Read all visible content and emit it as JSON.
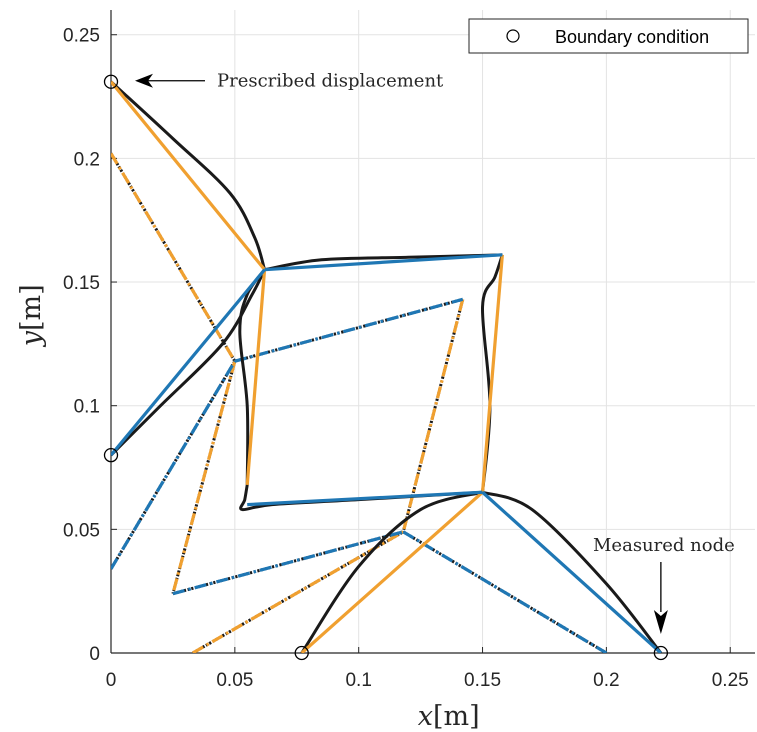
{
  "chart_data": {
    "type": "line",
    "xlabel": "x",
    "xunit": "[m]",
    "ylabel": "y",
    "yunit": "[m]",
    "xlim": [
      0,
      0.26
    ],
    "ylim": [
      0,
      0.26
    ],
    "xticks": [
      0,
      0.05,
      0.1,
      0.15,
      0.2,
      0.25
    ],
    "yticks": [
      0,
      0.05,
      0.1,
      0.15,
      0.2,
      0.25
    ],
    "xtick_labels": [
      "0",
      "0.05",
      "0.1",
      "0.15",
      "0.2",
      "0.25"
    ],
    "ytick_labels": [
      "0",
      "0.05",
      "0.1",
      "0.15",
      "0.2",
      "0.25"
    ],
    "grid": true,
    "legend": {
      "position": "top-right",
      "entries": [
        {
          "label": "Boundary condition",
          "marker": "open-circle"
        }
      ]
    },
    "colors": {
      "black": "#1a1a1a",
      "orange": "#f0a030",
      "blue": "#1f77b4"
    },
    "annotations": [
      {
        "text": "Prescribed displacement",
        "x": 0.0,
        "y": 0.231
      },
      {
        "text": "Measured node",
        "x": 0.222,
        "y": 0.0
      }
    ],
    "boundary_points": [
      {
        "x": 0.0,
        "y": 0.231
      },
      {
        "x": 0.0,
        "y": 0.08
      },
      {
        "x": 0.077,
        "y": 0.0
      },
      {
        "x": 0.222,
        "y": 0.0
      }
    ],
    "series": [
      {
        "color": "black",
        "style": "solid",
        "smooth": true,
        "points": [
          [
            0.0,
            0.231
          ],
          [
            0.025,
            0.208
          ],
          [
            0.048,
            0.186
          ],
          [
            0.058,
            0.168
          ],
          [
            0.062,
            0.155
          ]
        ]
      },
      {
        "color": "black",
        "style": "solid",
        "smooth": true,
        "points": [
          [
            0.0,
            0.08
          ],
          [
            0.02,
            0.1
          ],
          [
            0.045,
            0.125
          ],
          [
            0.057,
            0.145
          ],
          [
            0.062,
            0.155
          ]
        ]
      },
      {
        "color": "black",
        "style": "solid",
        "smooth": true,
        "points": [
          [
            0.062,
            0.155
          ],
          [
            0.085,
            0.159
          ],
          [
            0.12,
            0.16
          ],
          [
            0.158,
            0.161
          ]
        ]
      },
      {
        "color": "black",
        "style": "solid",
        "smooth": true,
        "points": [
          [
            0.158,
            0.161
          ],
          [
            0.155,
            0.152
          ],
          [
            0.15,
            0.14
          ],
          [
            0.153,
            0.1
          ],
          [
            0.15,
            0.065
          ]
        ]
      },
      {
        "color": "black",
        "style": "solid",
        "smooth": true,
        "points": [
          [
            0.062,
            0.155
          ],
          [
            0.055,
            0.145
          ],
          [
            0.052,
            0.13
          ],
          [
            0.055,
            0.1
          ],
          [
            0.055,
            0.068
          ]
        ]
      },
      {
        "color": "black",
        "style": "solid",
        "smooth": true,
        "points": [
          [
            0.055,
            0.068
          ],
          [
            0.054,
            0.062
          ],
          [
            0.053,
            0.058
          ],
          [
            0.065,
            0.06
          ],
          [
            0.1,
            0.062
          ],
          [
            0.15,
            0.065
          ]
        ]
      },
      {
        "color": "black",
        "style": "solid",
        "smooth": true,
        "points": [
          [
            0.15,
            0.065
          ],
          [
            0.17,
            0.058
          ],
          [
            0.2,
            0.028
          ],
          [
            0.222,
            0.0
          ]
        ]
      },
      {
        "color": "black",
        "style": "solid",
        "smooth": true,
        "points": [
          [
            0.077,
            0.0
          ],
          [
            0.1,
            0.035
          ],
          [
            0.125,
            0.058
          ],
          [
            0.15,
            0.065
          ]
        ]
      },
      {
        "color": "orange",
        "style": "solid",
        "smooth": false,
        "points": [
          [
            0.0,
            0.231
          ],
          [
            0.062,
            0.155
          ]
        ]
      },
      {
        "color": "orange",
        "style": "solid",
        "smooth": false,
        "points": [
          [
            0.062,
            0.155
          ],
          [
            0.055,
            0.068
          ]
        ]
      },
      {
        "color": "orange",
        "style": "solid",
        "smooth": false,
        "points": [
          [
            0.158,
            0.161
          ],
          [
            0.15,
            0.065
          ]
        ]
      },
      {
        "color": "orange",
        "style": "solid",
        "smooth": false,
        "points": [
          [
            0.077,
            0.0
          ],
          [
            0.15,
            0.065
          ]
        ]
      },
      {
        "color": "blue",
        "style": "solid",
        "smooth": false,
        "points": [
          [
            0.0,
            0.08
          ],
          [
            0.062,
            0.155
          ]
        ]
      },
      {
        "color": "blue",
        "style": "solid",
        "smooth": false,
        "points": [
          [
            0.062,
            0.155
          ],
          [
            0.158,
            0.161
          ]
        ]
      },
      {
        "color": "blue",
        "style": "solid",
        "smooth": false,
        "points": [
          [
            0.055,
            0.06
          ],
          [
            0.15,
            0.065
          ]
        ]
      },
      {
        "color": "blue",
        "style": "solid",
        "smooth": false,
        "points": [
          [
            0.15,
            0.065
          ],
          [
            0.222,
            0.0
          ]
        ]
      },
      {
        "color": "black",
        "style": "dotted",
        "smooth": false,
        "points": [
          [
            0.0,
            0.202
          ],
          [
            0.05,
            0.118
          ]
        ]
      },
      {
        "color": "black",
        "style": "dotted",
        "smooth": false,
        "points": [
          [
            0.0,
            0.034
          ],
          [
            0.05,
            0.118
          ]
        ]
      },
      {
        "color": "black",
        "style": "dotted",
        "smooth": false,
        "points": [
          [
            0.05,
            0.118
          ],
          [
            0.142,
            0.143
          ]
        ]
      },
      {
        "color": "black",
        "style": "dotted",
        "smooth": false,
        "points": [
          [
            0.142,
            0.143
          ],
          [
            0.118,
            0.049
          ]
        ]
      },
      {
        "color": "black",
        "style": "dotted",
        "smooth": false,
        "points": [
          [
            0.05,
            0.118
          ],
          [
            0.025,
            0.024
          ]
        ]
      },
      {
        "color": "black",
        "style": "dotted",
        "smooth": false,
        "points": [
          [
            0.025,
            0.024
          ],
          [
            0.118,
            0.049
          ]
        ]
      },
      {
        "color": "black",
        "style": "dotted",
        "smooth": false,
        "points": [
          [
            0.118,
            0.049
          ],
          [
            0.2,
            0.0
          ]
        ]
      },
      {
        "color": "black",
        "style": "dotted",
        "smooth": false,
        "points": [
          [
            0.033,
            0.0
          ],
          [
            0.118,
            0.049
          ]
        ]
      },
      {
        "color": "orange",
        "style": "dashdot",
        "smooth": false,
        "points": [
          [
            0.0,
            0.202
          ],
          [
            0.05,
            0.118
          ]
        ]
      },
      {
        "color": "orange",
        "style": "dashdot",
        "smooth": false,
        "points": [
          [
            0.05,
            0.118
          ],
          [
            0.025,
            0.024
          ]
        ]
      },
      {
        "color": "orange",
        "style": "dashdot",
        "smooth": false,
        "points": [
          [
            0.142,
            0.143
          ],
          [
            0.118,
            0.049
          ]
        ]
      },
      {
        "color": "orange",
        "style": "dashdot",
        "smooth": false,
        "points": [
          [
            0.033,
            0.0
          ],
          [
            0.118,
            0.049
          ]
        ]
      },
      {
        "color": "blue",
        "style": "dashdot",
        "smooth": false,
        "points": [
          [
            0.0,
            0.034
          ],
          [
            0.05,
            0.118
          ]
        ]
      },
      {
        "color": "blue",
        "style": "dashdot",
        "smooth": false,
        "points": [
          [
            0.05,
            0.118
          ],
          [
            0.142,
            0.143
          ]
        ]
      },
      {
        "color": "blue",
        "style": "dashdot",
        "smooth": false,
        "points": [
          [
            0.025,
            0.024
          ],
          [
            0.118,
            0.049
          ]
        ]
      },
      {
        "color": "blue",
        "style": "dashdot",
        "smooth": false,
        "points": [
          [
            0.118,
            0.049
          ],
          [
            0.2,
            0.0
          ]
        ]
      }
    ]
  }
}
